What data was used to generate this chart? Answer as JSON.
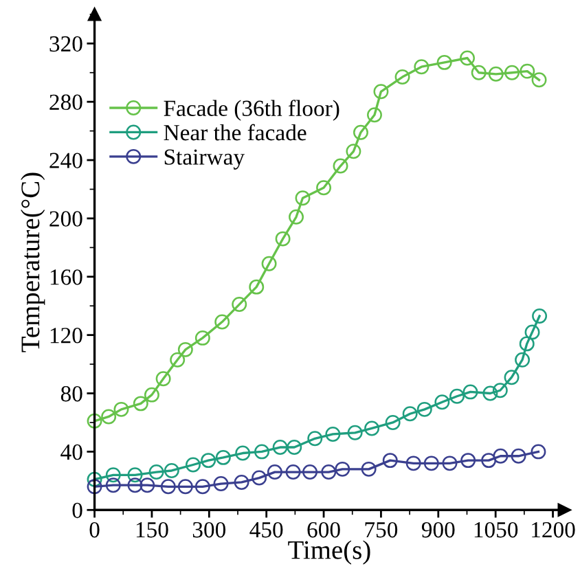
{
  "chart_data": {
    "type": "line",
    "xlabel": "Time(s)",
    "ylabel": "Temperature(°C)",
    "xlim": [
      0,
      1230
    ],
    "ylim": [
      0,
      340
    ],
    "xticks": [
      0,
      150,
      300,
      450,
      600,
      750,
      900,
      1050,
      1200
    ],
    "yticks": [
      0,
      40,
      80,
      120,
      160,
      200,
      240,
      280,
      320
    ],
    "marker": "circle",
    "line_style": "solid",
    "legend": "top left",
    "grid": false,
    "series": [
      {
        "name": "Facade (36th floor)",
        "color": "#66c24a",
        "x": [
          0,
          37,
          70,
          121,
          150,
          180,
          217,
          238,
          283,
          334,
          379,
          424,
          457,
          493,
          528,
          545,
          600,
          644,
          678,
          697,
          733,
          750,
          806,
          856,
          916,
          976,
          1006,
          1051,
          1093,
          1133,
          1164
        ],
        "values": [
          61,
          64,
          69,
          73,
          79,
          90,
          103,
          110,
          118,
          129,
          141,
          153,
          169,
          186,
          201,
          214,
          221,
          236,
          246,
          259,
          271,
          287,
          297,
          304,
          307,
          310,
          300,
          299,
          300,
          301,
          295
        ]
      },
      {
        "name": "Near the facade",
        "color": "#1f9e7f",
        "x": [
          0,
          49,
          106,
          162,
          202,
          258,
          298,
          337,
          388,
          438,
          486,
          523,
          577,
          624,
          682,
          726,
          781,
          826,
          864,
          910,
          949,
          984,
          1036,
          1062,
          1092,
          1120,
          1132,
          1146,
          1165
        ],
        "values": [
          21,
          24,
          24,
          26,
          27,
          31,
          34,
          36,
          39,
          40,
          43,
          43,
          49,
          52,
          53,
          56,
          60,
          66,
          69,
          74,
          78,
          81,
          80,
          82,
          91,
          103,
          114,
          122,
          133
        ]
      },
      {
        "name": "Stairway",
        "color": "#3a3f8f",
        "x": [
          0,
          49,
          106,
          138,
          193,
          238,
          283,
          331,
          385,
          431,
          472,
          520,
          564,
          613,
          649,
          718,
          774,
          835,
          882,
          930,
          978,
          1032,
          1063,
          1110,
          1162
        ],
        "values": [
          16,
          17,
          17,
          17,
          16,
          16,
          16,
          18,
          19,
          22,
          26,
          26,
          26,
          26,
          28,
          28,
          34,
          32,
          32,
          32,
          34,
          34,
          37,
          37,
          40
        ]
      }
    ]
  }
}
